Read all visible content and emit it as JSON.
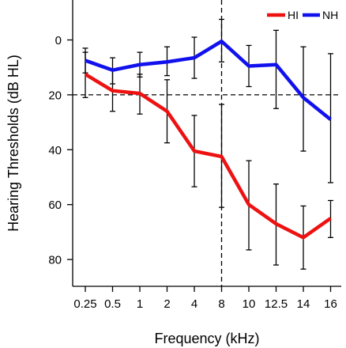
{
  "chart_data": {
    "type": "line",
    "xlabel": "Frequency (kHz)",
    "ylabel": "Hearing Thresholds (dB HL)",
    "categories": [
      "0.25",
      "0.5",
      "1",
      "2",
      "4",
      "8",
      "10",
      "12.5",
      "14",
      "16"
    ],
    "yticks": [
      "0",
      "20",
      "40",
      "60",
      "80"
    ],
    "ylim": [
      90,
      -15
    ],
    "y_reversed": true,
    "grid": false,
    "legend_position": "top-right",
    "reference_lines": {
      "y": 20,
      "x_category": "8"
    },
    "series": [
      {
        "name": "HI",
        "color": "#ee1111",
        "values": [
          12.5,
          18.5,
          19.5,
          26,
          40.5,
          42.5,
          60,
          67,
          72,
          65
        ],
        "err_low": [
          4.5,
          11,
          12.5,
          14.5,
          27.5,
          23.5,
          44,
          52.5,
          60.5,
          58.5
        ],
        "err_high": [
          21,
          26,
          27,
          37.5,
          53.5,
          61,
          76.5,
          82,
          83.5,
          72
        ]
      },
      {
        "name": "NH",
        "color": "#1111ee",
        "values": [
          7.5,
          11,
          9,
          8,
          6.5,
          0.5,
          9.5,
          9,
          21,
          29
        ],
        "err_low": [
          3,
          6.5,
          4.5,
          2.5,
          -1,
          -7.5,
          2,
          -3.5,
          2.5,
          5
        ],
        "err_high": [
          12,
          16,
          13.5,
          13,
          14,
          8,
          17,
          25,
          40.5,
          52
        ]
      }
    ]
  }
}
